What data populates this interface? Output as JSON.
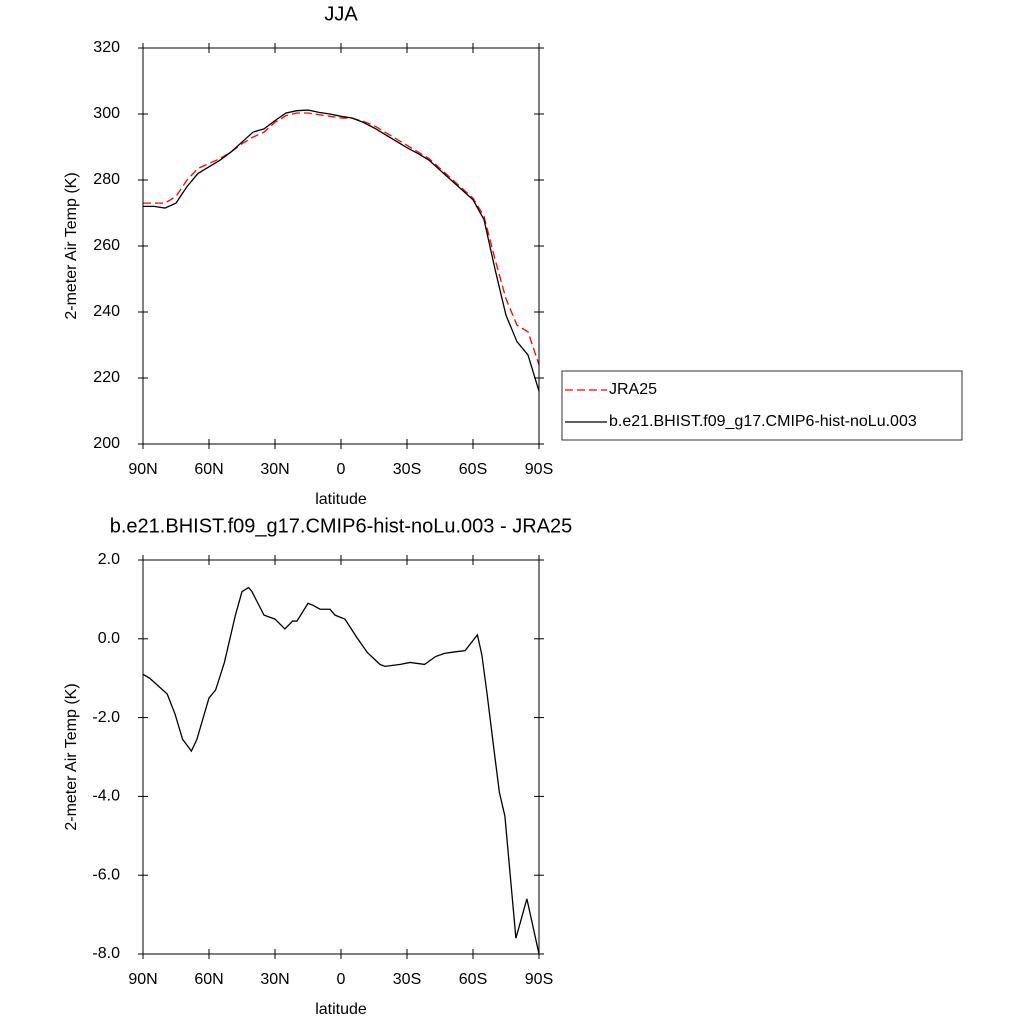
{
  "chart_data": [
    {
      "type": "line",
      "title": "JJA",
      "xlabel": "latitude",
      "ylabel": "2-meter Air Temp (K)",
      "x": [
        90,
        85,
        80,
        75,
        70,
        65,
        60,
        55,
        50,
        45,
        40,
        35,
        30,
        25,
        20,
        15,
        10,
        5,
        0,
        -5,
        -10,
        -15,
        -20,
        -25,
        -30,
        -35,
        -40,
        -45,
        -50,
        -55,
        -60,
        -65,
        -70,
        -75,
        -80,
        -85,
        -90
      ],
      "series": [
        {
          "name": "JRA25",
          "color": "#ff0000",
          "dash": true,
          "values": [
            273,
            273,
            273,
            275,
            280,
            283.5,
            285,
            286.5,
            288.5,
            291,
            293,
            294.5,
            297.5,
            299.5,
            300.3,
            300.3,
            299.8,
            299.3,
            298.8,
            298.7,
            297.8,
            296.5,
            294.5,
            292.5,
            290.5,
            288.5,
            286.5,
            283.5,
            280.5,
            277.5,
            274.5,
            269,
            256,
            244,
            236,
            234,
            224
          ]
        },
        {
          "name": "b.e21.BHIST.f09_g17.CMIP6-hist-noLu.003",
          "color": "#000000",
          "dash": false,
          "values": [
            272,
            272,
            271.5,
            273,
            278,
            282,
            284,
            286,
            288.5,
            291.5,
            294.5,
            295.5,
            298,
            300.3,
            301,
            301.2,
            300.5,
            300,
            299.3,
            298.8,
            297.5,
            295.8,
            293.8,
            291.8,
            289.8,
            288,
            286,
            283,
            280,
            277,
            274,
            268,
            253,
            239,
            231,
            227,
            216
          ]
        }
      ],
      "xlim": [
        90,
        -90
      ],
      "xticks": [
        {
          "value": 90,
          "label": "90N"
        },
        {
          "value": 60,
          "label": "60N"
        },
        {
          "value": 30,
          "label": "30N"
        },
        0,
        {
          "value": -30,
          "label": "30S"
        },
        {
          "value": -60,
          "label": "60S"
        },
        {
          "value": -90,
          "label": "90S"
        }
      ],
      "ylim": [
        200,
        320
      ],
      "yticks": [
        200,
        220,
        240,
        260,
        280,
        300,
        320
      ],
      "legend": "outside right"
    },
    {
      "type": "line",
      "title": "b.e21.BHIST.f09_g17.CMIP6-hist-noLu.003 - JRA25",
      "xlabel": "latitude",
      "ylabel": "2-meter Air Temp (K)",
      "x": [
        90,
        87,
        81,
        79,
        75.5,
        72,
        68,
        65.5,
        60,
        57,
        53,
        48,
        45,
        42,
        40.5,
        35,
        30,
        25.5,
        22,
        20,
        15,
        12.7,
        9.5,
        5,
        2.7,
        -1.8,
        -7,
        -12,
        -17.7,
        -20,
        -27,
        -31.4,
        -38,
        -43,
        -47,
        -52,
        -56.4,
        -62,
        -64,
        -66.4,
        -69.5,
        -72,
        -74.5,
        -79.5,
        -84.5,
        -90
      ],
      "values": [
        -0.9,
        -1.0,
        -1.3,
        -1.4,
        -1.9,
        -2.55,
        -2.85,
        -2.55,
        -1.5,
        -1.3,
        -0.6,
        0.6,
        1.2,
        1.3,
        1.2,
        0.6,
        0.5,
        0.25,
        0.45,
        0.45,
        0.9,
        0.85,
        0.75,
        0.75,
        0.6,
        0.5,
        0.05,
        -0.35,
        -0.65,
        -0.7,
        -0.65,
        -0.6,
        -0.65,
        -0.45,
        -0.37,
        -0.33,
        -0.3,
        0.1,
        -0.4,
        -1.4,
        -2.8,
        -3.9,
        -4.5,
        -7.6,
        -6.6,
        -8.0
      ],
      "color": "#000000",
      "xlim": [
        90,
        -90
      ],
      "xticks": [
        {
          "value": 90,
          "label": "90N"
        },
        {
          "value": 60,
          "label": "60N"
        },
        {
          "value": 30,
          "label": "30N"
        },
        0,
        {
          "value": -30,
          "label": "30S"
        },
        {
          "value": -60,
          "label": "60S"
        },
        {
          "value": -90,
          "label": "90S"
        }
      ],
      "ylim": [
        -8.0,
        2.0
      ],
      "yticks": [
        {
          "value": -8,
          "label": "-8.0"
        },
        {
          "value": -6,
          "label": "-6.0"
        },
        {
          "value": -4,
          "label": "-4.0"
        },
        {
          "value": -2,
          "label": "-2.0"
        },
        {
          "value": 0,
          "label": "0.0"
        },
        {
          "value": 2,
          "label": "2.0"
        }
      ]
    }
  ]
}
